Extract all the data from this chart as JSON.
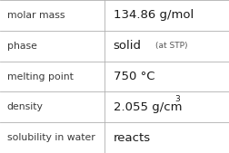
{
  "rows": [
    {
      "label": "molar mass",
      "value": "134.86 g/mol",
      "type": "plain"
    },
    {
      "label": "phase",
      "value_main": "solid",
      "value_sub": "(at STP)",
      "type": "phase"
    },
    {
      "label": "melting point",
      "value": "750 °C",
      "type": "plain"
    },
    {
      "label": "density",
      "value": "2.055 g/cm",
      "superscript": "3",
      "type": "super"
    },
    {
      "label": "solubility in water",
      "value": "reacts",
      "type": "plain"
    }
  ],
  "col_split": 0.455,
  "bg_color": "#ffffff",
  "border_color": "#b0b0b0",
  "label_color": "#3a3a3a",
  "value_color": "#1a1a1a",
  "sub_color": "#555555",
  "label_fontsize": 7.8,
  "value_fontsize": 9.5,
  "sub_fontsize": 6.5,
  "phase_main_fontsize": 9.5,
  "phase_sub_fontsize": 6.5
}
